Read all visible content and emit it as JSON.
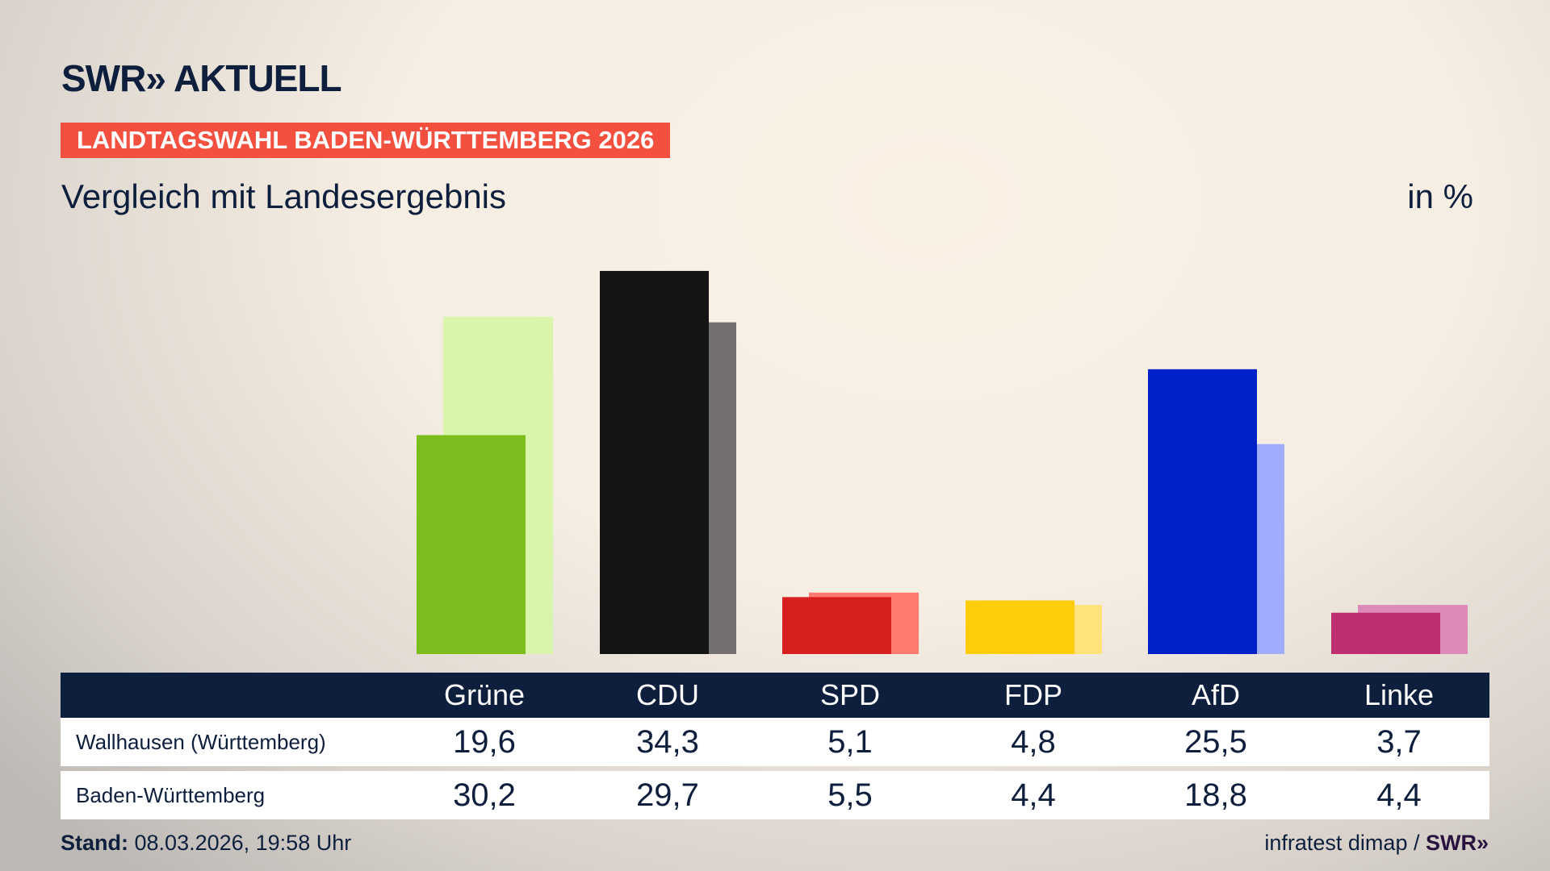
{
  "header": {
    "logo": "SWR» AKTUELL",
    "banner": "LANDTAGSWAHL BADEN-WÜRTTEMBERG 2026",
    "subtitle": "Vergleich mit Landesergebnis",
    "unit": "in %"
  },
  "chart_data": {
    "type": "bar",
    "categories": [
      "Grüne",
      "CDU",
      "SPD",
      "FDP",
      "AfD",
      "Linke"
    ],
    "series": [
      {
        "name": "Wallhausen (Württemberg)",
        "values": [
          19.6,
          34.3,
          5.1,
          4.8,
          25.5,
          3.7
        ],
        "colors": [
          "#7abd1c",
          "#141414",
          "#d81f1f",
          "#ffcc0a",
          "#0020c8",
          "#be2f72"
        ]
      },
      {
        "name": "Baden-Württemberg",
        "values": [
          30.2,
          29.7,
          5.5,
          4.4,
          18.8,
          4.4
        ],
        "colors": [
          "#d8f5ab",
          "#74706f",
          "#ff7b72",
          "#ffe37a",
          "#a0adfc",
          "#de8ab8"
        ]
      }
    ],
    "value_labels": [
      [
        "19,6",
        "34,3",
        "5,1",
        "4,8",
        "25,5",
        "3,7"
      ],
      [
        "30,2",
        "29,7",
        "5,5",
        "4,4",
        "18,8",
        "4,4"
      ]
    ],
    "grid": false
  },
  "footer": {
    "stand_label": "Stand:",
    "stand_value": "08.03.2026, 19:58 Uhr",
    "source": "infratest dimap /",
    "source_logo": "SWR»"
  }
}
